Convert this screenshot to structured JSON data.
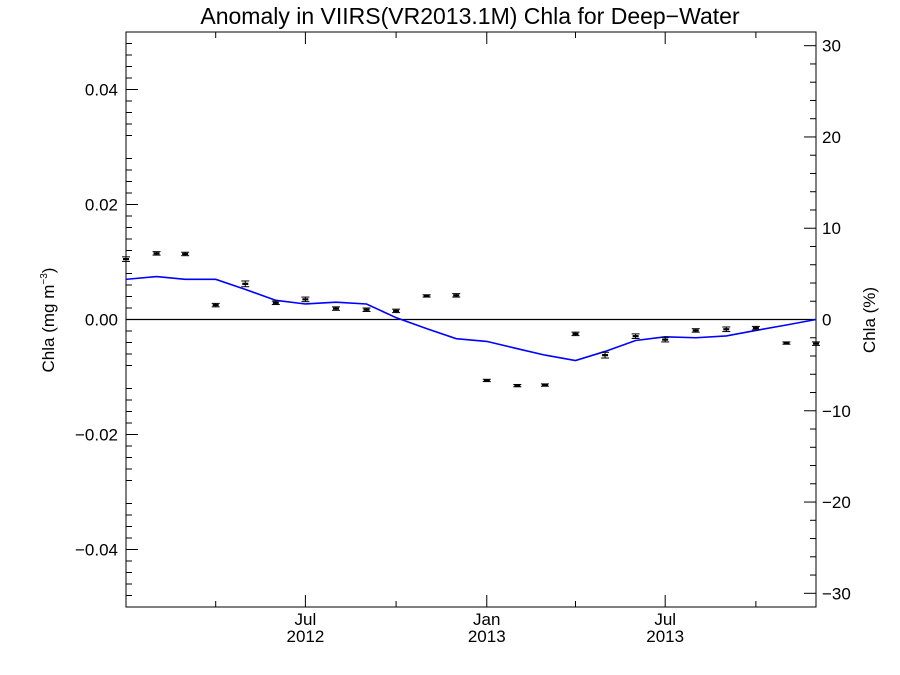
{
  "chart_data": {
    "type": "line",
    "title": "Anomaly in VIIRS(VR2013.1M) Chla for Deep−Water",
    "ylabel_left": {
      "base": "Chla (mg m",
      "sup": "−3",
      "close": ")"
    },
    "ylabel_right": "Chla (%)",
    "xlim": [
      "2012-01-01",
      "2013-12-01"
    ],
    "ylim_left": [
      -0.05,
      0.05
    ],
    "ylim_right": [
      -31.5,
      31.5
    ],
    "left_ticks": [
      {
        "value": 0.04,
        "label": "0.04"
      },
      {
        "value": 0.02,
        "label": "0.02"
      },
      {
        "value": 0.0,
        "label": "0.00"
      },
      {
        "value": -0.02,
        "label": "−0.02"
      },
      {
        "value": -0.04,
        "label": "−0.04"
      }
    ],
    "right_ticks": [
      {
        "value": 30,
        "label": "30"
      },
      {
        "value": 20,
        "label": "20"
      },
      {
        "value": 10,
        "label": "10"
      },
      {
        "value": 0,
        "label": "0"
      },
      {
        "value": -10,
        "label": "−10"
      },
      {
        "value": -20,
        "label": "−20"
      },
      {
        "value": -30,
        "label": "−30"
      }
    ],
    "x_ticks": [
      {
        "date": "2012-07-01",
        "line1": "Jul",
        "line2": "2012"
      },
      {
        "date": "2013-01-01",
        "line1": "Jan",
        "line2": "2013"
      },
      {
        "date": "2013-07-01",
        "line1": "Jul",
        "line2": "2013"
      }
    ],
    "zero_line": true,
    "grid": false,
    "series": [
      {
        "kind": "errorbar_points",
        "color": "#000000",
        "axis": "left",
        "dates": [
          "2012-01",
          "2012-02",
          "2012-03",
          "2012-04",
          "2012-05",
          "2012-06",
          "2012-07",
          "2012-08",
          "2012-09",
          "2012-10",
          "2012-11",
          "2012-12",
          "2013-01",
          "2013-02",
          "2013-03",
          "2013-04",
          "2013-05",
          "2013-06",
          "2013-07",
          "2013-08",
          "2013-09",
          "2013-10",
          "2013-11",
          "2013-12"
        ],
        "values": [
          0.0105,
          0.0115,
          0.0114,
          0.0025,
          0.0062,
          0.0029,
          0.0035,
          0.0019,
          0.0017,
          0.0015,
          0.0041,
          0.0042,
          -0.0106,
          -0.0115,
          -0.0114,
          -0.0025,
          -0.0062,
          -0.0029,
          -0.0035,
          -0.0019,
          -0.0017,
          -0.0015,
          -0.0041,
          -0.0042
        ],
        "errors": [
          0.0004,
          0.0003,
          0.0003,
          0.0003,
          0.0005,
          0.0003,
          0.0004,
          0.0003,
          0.0003,
          0.0003,
          0.0002,
          0.0003,
          0.0002,
          0.0002,
          0.0002,
          0.0003,
          0.0005,
          0.0004,
          0.0004,
          0.0003,
          0.0004,
          0.0003,
          0.0002,
          0.0003
        ]
      },
      {
        "kind": "line",
        "color": "#0000ff",
        "axis": "right",
        "dates": [
          "2012-01",
          "2012-02",
          "2012-03",
          "2012-04",
          "2012-05",
          "2012-06",
          "2012-07",
          "2012-08",
          "2012-09",
          "2012-10",
          "2012-11",
          "2012-12",
          "2013-01",
          "2013-02",
          "2013-03",
          "2013-04",
          "2013-05",
          "2013-06",
          "2013-07",
          "2013-08",
          "2013-09",
          "2013-10",
          "2013-11",
          "2013-12"
        ],
        "values": [
          4.4,
          4.7,
          4.4,
          4.4,
          3.3,
          2.1,
          1.7,
          1.9,
          1.7,
          0.2,
          -1.0,
          -2.1,
          -2.4,
          -3.2,
          -3.9,
          -4.5,
          -3.5,
          -2.3,
          -1.9,
          -2.0,
          -1.8,
          -1.2,
          -0.6,
          0.0
        ]
      }
    ]
  }
}
